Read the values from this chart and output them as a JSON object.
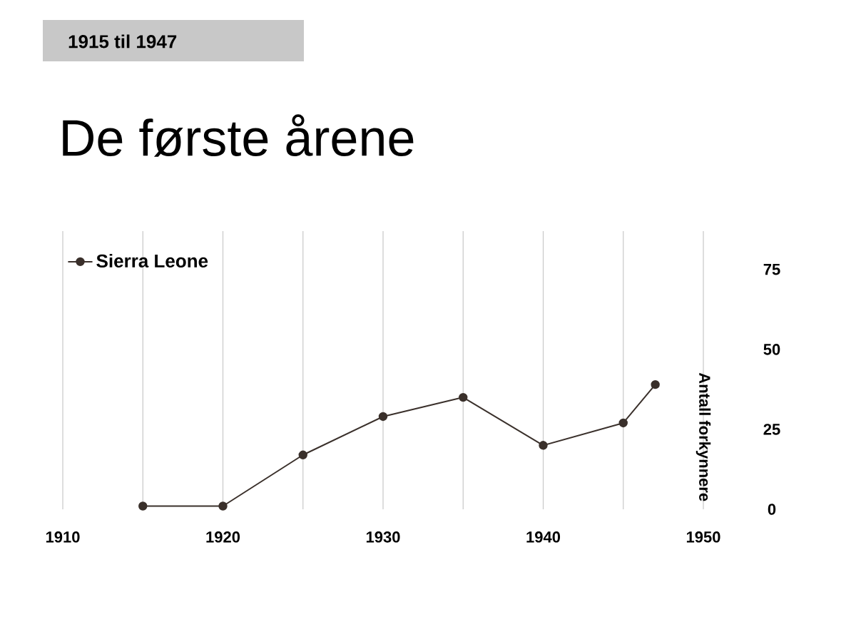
{
  "chart_data": {
    "type": "line",
    "title": "De første årene",
    "subtitle": "1915 til 1947",
    "ylabel": "Antall forkynnere",
    "x": [
      1915,
      1920,
      1925,
      1930,
      1935,
      1940,
      1945,
      1947
    ],
    "series": [
      {
        "name": "Sierra Leone",
        "color": "#3a302b",
        "values": [
          1,
          1,
          17,
          29,
          35,
          20,
          27,
          39
        ]
      }
    ],
    "xlim": [
      1910,
      1950
    ],
    "xticks": [
      1910,
      {
        "value": 1915,
        "label": null
      },
      1920,
      {
        "value": 1925,
        "label": null
      },
      1930,
      {
        "value": 1935,
        "label": null
      },
      1940,
      {
        "value": 1945,
        "label": null
      },
      1950
    ],
    "ylim": [
      0,
      87
    ],
    "yticks": [
      0,
      25,
      50,
      75
    ],
    "grid": "x",
    "legend": "top left",
    "marker": "circle",
    "line_style": "solid"
  }
}
